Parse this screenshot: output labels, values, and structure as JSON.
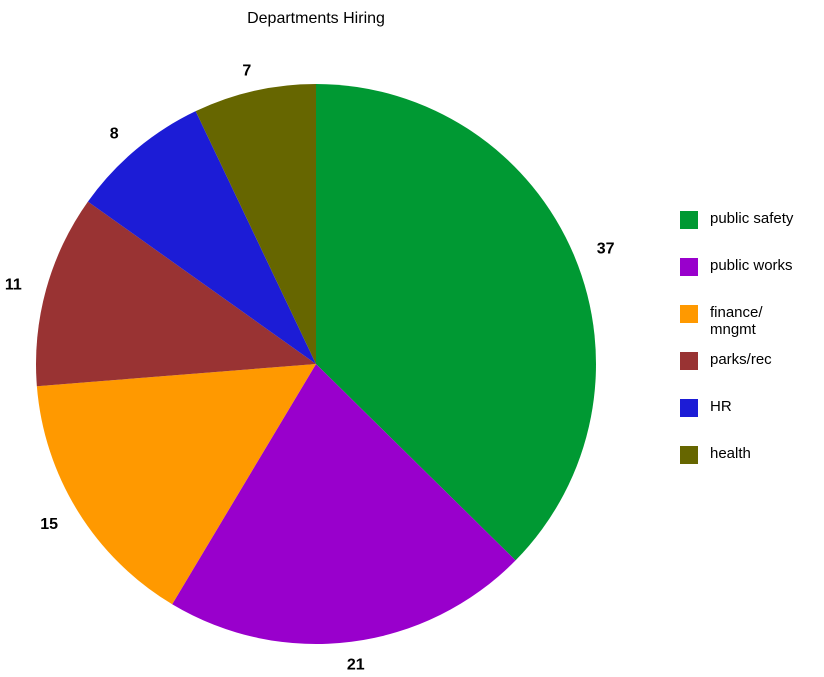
{
  "chart_data": {
    "type": "pie",
    "title": "Departments Hiring",
    "categories": [
      "public safety",
      "public works",
      "finance/ mngmt",
      "parks/rec",
      "HR",
      "health"
    ],
    "values": [
      37,
      21,
      15,
      11,
      8,
      7
    ],
    "colors": [
      "#009933",
      "#9900cc",
      "#ff9900",
      "#993333",
      "#1c1cd6",
      "#666600"
    ],
    "legend_position": "right",
    "start_angle": "top",
    "direction": "clockwise"
  }
}
